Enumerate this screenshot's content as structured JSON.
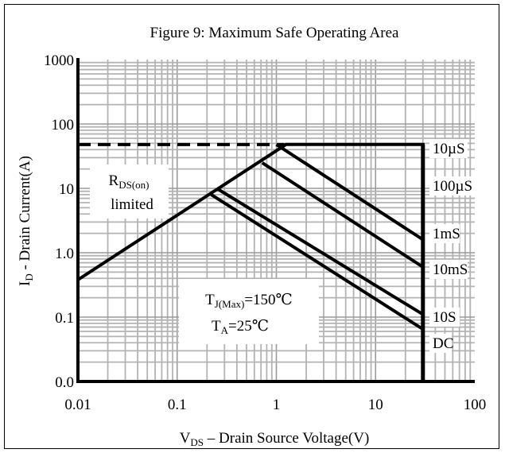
{
  "chart_data": {
    "type": "line",
    "title": "Figure 9: Maximum Safe Operating Area",
    "xlabel": {
      "main": "V",
      "sub": "DS",
      "rest": " – Drain Source Voltage(V)"
    },
    "ylabel": {
      "main": "I",
      "sub": "D",
      "rest": " - Drain Current(A)"
    },
    "x_scale": "log",
    "y_scale": "log",
    "xlim": [
      0.01,
      100
    ],
    "ylim": [
      0.01,
      1000
    ],
    "x_ticks": [
      {
        "value": 0.01,
        "label": "0.01"
      },
      {
        "value": 0.1,
        "label": "0.1"
      },
      {
        "value": 1,
        "label": "1"
      },
      {
        "value": 10,
        "label": "10"
      },
      {
        "value": 100,
        "label": "100"
      }
    ],
    "y_ticks": [
      {
        "value": 0.01,
        "label": "0.0"
      },
      {
        "value": 0.1,
        "label": "0.1"
      },
      {
        "value": 1,
        "label": "1.0"
      },
      {
        "value": 10,
        "label": "10"
      },
      {
        "value": 100,
        "label": "100"
      },
      {
        "value": 1000,
        "label": "1000"
      }
    ],
    "grid": true,
    "rds_limit": {
      "x": [
        0.01,
        1.2
      ],
      "y": [
        48,
        48
      ],
      "style": "dashed"
    },
    "series": [
      {
        "name": "10µS",
        "x": [
          0.01,
          1.25,
          6,
          30,
          30
        ],
        "y": [
          0.38,
          48,
          48,
          48,
          10
        ]
      },
      {
        "name": "100µS",
        "x": [
          1.0,
          30
        ],
        "y": [
          48,
          1.6
        ]
      },
      {
        "name": "1mS",
        "x": [
          0.72,
          30
        ],
        "y": [
          25,
          0.6
        ]
      },
      {
        "name": "10mS",
        "x": [
          0.25,
          30
        ],
        "y": [
          10,
          0.11
        ]
      },
      {
        "name": "10S",
        "x": [
          0.22,
          30
        ],
        "y": [
          8,
          0.065
        ]
      },
      {
        "name": "DC",
        "x": [
          30,
          30
        ],
        "y": [
          48,
          0.01
        ]
      }
    ],
    "annotations": {
      "rds": {
        "main": "R",
        "sub": "DS(on)",
        "line2": "limited"
      },
      "tj": {
        "main": "T",
        "sub": "J(Max)",
        "rest": "=150℃"
      },
      "ta": {
        "main": "T",
        "sub": "A",
        "rest": "=25℃"
      }
    }
  }
}
